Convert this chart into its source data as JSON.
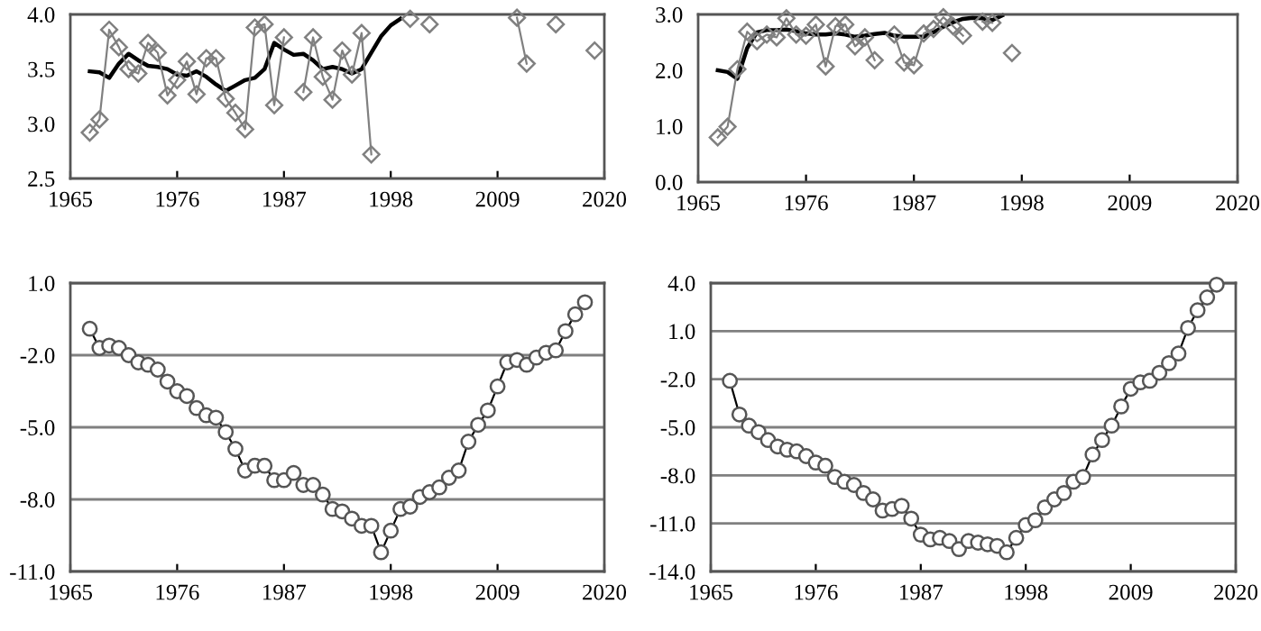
{
  "chart_data": [
    {
      "type": "line",
      "x": [
        1967,
        1968,
        1969,
        1970,
        1971,
        1972,
        1973,
        1974,
        1975,
        1976,
        1977,
        1978,
        1979,
        1980,
        1981,
        1982,
        1983,
        1984,
        1985,
        1986,
        1987,
        1988,
        1989,
        1990,
        1991,
        1992,
        1993,
        1994,
        1995,
        1996,
        1997,
        1998,
        1999,
        2000,
        2001,
        2002,
        2003,
        2004,
        2005,
        2006,
        2007,
        2008,
        2009,
        2010,
        2011,
        2012,
        2013,
        2014,
        2015,
        2016,
        2017,
        2018,
        2019
      ],
      "series": [
        {
          "color": "#808080",
          "marker": "diamond",
          "values": [
            2.92,
            3.04,
            3.86,
            3.7,
            3.5,
            3.46,
            3.74,
            3.65,
            3.26,
            3.4,
            3.57,
            3.27,
            3.6,
            3.6,
            3.23,
            3.1,
            2.95,
            3.88,
            3.91,
            3.17,
            3.79,
            null,
            3.29,
            3.79,
            3.43,
            3.22,
            3.67,
            3.45,
            3.83,
            2.72,
            null,
            null,
            null,
            3.96,
            null,
            3.91,
            null,
            null,
            null,
            null,
            null,
            null,
            null,
            null,
            3.97,
            3.55,
            null,
            null,
            3.91,
            null,
            null,
            null,
            3.67
          ]
        },
        {
          "color": "#000000",
          "marker": "none",
          "values": [
            3.48,
            3.47,
            3.42,
            3.55,
            3.64,
            3.58,
            3.53,
            3.52,
            3.5,
            3.45,
            3.44,
            3.48,
            3.43,
            3.36,
            3.3,
            3.35,
            3.4,
            3.42,
            3.5,
            3.74,
            3.68,
            3.63,
            3.64,
            3.58,
            3.5,
            3.52,
            3.5,
            3.46,
            3.5,
            3.65,
            3.8,
            3.9,
            3.96,
            null,
            null,
            null,
            null,
            null,
            null,
            null,
            null,
            null,
            null,
            null,
            null,
            null,
            null,
            null,
            null,
            null,
            null,
            null,
            null
          ]
        }
      ],
      "xlim": [
        1965,
        2020
      ],
      "xticks": [
        1965,
        1976,
        1987,
        1998,
        2009,
        2020
      ],
      "ylim": [
        2.5,
        4.0
      ],
      "yticks": [
        {
          "value": 2.5,
          "label": "2.5"
        },
        {
          "value": 3.0,
          "label": "3.0"
        },
        {
          "value": 3.5,
          "label": "3.5"
        },
        {
          "value": 4.0,
          "label": "4.0"
        }
      ],
      "grid": false
    },
    {
      "type": "line",
      "x": [
        1967,
        1968,
        1969,
        1970,
        1971,
        1972,
        1973,
        1974,
        1975,
        1976,
        1977,
        1978,
        1979,
        1980,
        1981,
        1982,
        1983,
        1984,
        1985,
        1986,
        1987,
        1988,
        1989,
        1990,
        1991,
        1992,
        1993,
        1994,
        1995,
        1996,
        1997
      ],
      "series": [
        {
          "color": "#808080",
          "marker": "diamond",
          "values": [
            0.8,
            0.99,
            2.02,
            2.69,
            2.52,
            2.64,
            2.59,
            2.93,
            2.64,
            2.62,
            2.82,
            2.07,
            2.79,
            2.82,
            2.43,
            2.59,
            2.18,
            null,
            2.64,
            2.14,
            2.09,
            2.66,
            2.74,
            2.95,
            2.79,
            2.62,
            null,
            2.87,
            2.85,
            null,
            2.31
          ]
        },
        {
          "color": "#000000",
          "marker": "none",
          "values": [
            2.0,
            1.97,
            1.85,
            2.4,
            2.68,
            2.72,
            2.72,
            2.73,
            2.7,
            2.66,
            2.64,
            2.64,
            2.66,
            2.64,
            2.6,
            2.62,
            2.65,
            2.67,
            2.62,
            2.6,
            2.6,
            2.6,
            2.68,
            2.78,
            2.86,
            2.92,
            2.94,
            2.93,
            2.9,
            2.98,
            null
          ]
        }
      ],
      "xlim": [
        1965,
        2020
      ],
      "xticks": [
        1965,
        1976,
        1987,
        1998,
        2009,
        2020
      ],
      "ylim": [
        0.0,
        3.0
      ],
      "yticks": [
        {
          "value": 0.0,
          "label": "0.0"
        },
        {
          "value": 1.0,
          "label": "1.0"
        },
        {
          "value": 2.0,
          "label": "2.0"
        },
        {
          "value": 3.0,
          "label": "3.0"
        }
      ],
      "grid": false
    },
    {
      "type": "line",
      "x": [
        1967,
        1968,
        1969,
        1970,
        1971,
        1972,
        1973,
        1974,
        1975,
        1976,
        1977,
        1978,
        1979,
        1980,
        1981,
        1982,
        1983,
        1984,
        1985,
        1986,
        1987,
        1988,
        1989,
        1990,
        1991,
        1992,
        1993,
        1994,
        1995,
        1996,
        1997,
        1998,
        1999,
        2000,
        2001,
        2002,
        2003,
        2004,
        2005,
        2006,
        2007,
        2008,
        2009,
        2010,
        2011,
        2012,
        2013,
        2014,
        2015,
        2016,
        2017,
        2018
      ],
      "series": [
        {
          "color": "#000000",
          "marker": "circle",
          "values": [
            -0.9,
            -1.7,
            -1.6,
            -1.7,
            -2.0,
            -2.3,
            -2.4,
            -2.6,
            -3.1,
            -3.5,
            -3.7,
            -4.2,
            -4.5,
            -4.6,
            -5.2,
            -5.9,
            -6.8,
            -6.6,
            -6.6,
            -7.2,
            -7.2,
            -6.9,
            -7.4,
            -7.4,
            -7.8,
            -8.4,
            -8.5,
            -8.8,
            -9.1,
            -9.1,
            -10.2,
            -9.3,
            -8.4,
            -8.3,
            -7.9,
            -7.7,
            -7.5,
            -7.1,
            -6.8,
            -5.6,
            -4.9,
            -4.3,
            -3.3,
            -2.3,
            -2.2,
            -2.4,
            -2.1,
            -1.9,
            -1.8,
            -1.0,
            -0.3,
            0.2
          ]
        }
      ],
      "xlim": [
        1965,
        2020
      ],
      "xticks": [
        1965,
        1976,
        1987,
        1998,
        2009,
        2020
      ],
      "ylim": [
        -11.0,
        1.0
      ],
      "yticks": [
        {
          "value": -11.0,
          "label": "-11.0"
        },
        {
          "value": -8.0,
          "label": "-8.0"
        },
        {
          "value": -5.0,
          "label": "-5.0"
        },
        {
          "value": -2.0,
          "label": "-2.0"
        },
        {
          "value": 1.0,
          "label": "1.0"
        }
      ],
      "grid": "y"
    },
    {
      "type": "line",
      "x": [
        1967,
        1968,
        1969,
        1970,
        1971,
        1972,
        1973,
        1974,
        1975,
        1976,
        1977,
        1978,
        1979,
        1980,
        1981,
        1982,
        1983,
        1984,
        1985,
        1986,
        1987,
        1988,
        1989,
        1990,
        1991,
        1992,
        1993,
        1994,
        1995,
        1996,
        1997,
        1998,
        1999,
        2000,
        2001,
        2002,
        2003,
        2004,
        2005,
        2006,
        2007,
        2008,
        2009,
        2010,
        2011,
        2012,
        2013,
        2014,
        2015,
        2016,
        2017,
        2018
      ],
      "series": [
        {
          "color": "#000000",
          "marker": "circle",
          "values": [
            -2.1,
            -4.2,
            -4.9,
            -5.3,
            -5.8,
            -6.2,
            -6.4,
            -6.5,
            -6.8,
            -7.2,
            -7.4,
            -8.1,
            -8.4,
            -8.6,
            -9.1,
            -9.5,
            -10.2,
            -10.1,
            -9.9,
            -10.7,
            -11.7,
            -12.0,
            -11.9,
            -12.1,
            -12.6,
            -12.1,
            -12.2,
            -12.3,
            -12.4,
            -12.8,
            -11.9,
            -11.1,
            -10.8,
            -10.0,
            -9.5,
            -9.1,
            -8.4,
            -8.1,
            -6.7,
            -5.8,
            -4.9,
            -3.7,
            -2.6,
            -2.2,
            -2.1,
            -1.6,
            -1.0,
            -0.4,
            1.2,
            2.3,
            3.1,
            3.9
          ]
        }
      ],
      "xlim": [
        1965,
        2020
      ],
      "xticks": [
        1965,
        1976,
        1987,
        1998,
        2009,
        2020
      ],
      "ylim": [
        -14.0,
        4.0
      ],
      "yticks": [
        {
          "value": -14.0,
          "label": "-14.0"
        },
        {
          "value": -11.0,
          "label": "-11.0"
        },
        {
          "value": -8.0,
          "label": "-8.0"
        },
        {
          "value": -5.0,
          "label": "-5.0"
        },
        {
          "value": -2.0,
          "label": "-2.0"
        },
        {
          "value": 1.0,
          "label": "1.0"
        },
        {
          "value": 4.0,
          "label": "4.0"
        }
      ],
      "grid": "y"
    }
  ]
}
